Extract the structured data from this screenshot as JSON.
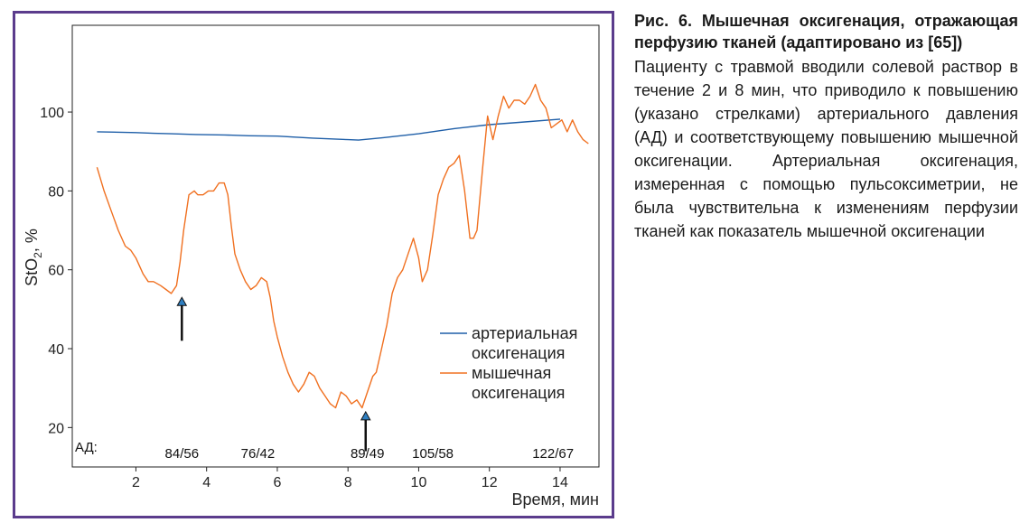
{
  "caption": {
    "title": "Рис. 6. Мышечная оксигенация, отражающая перфузию тканей (адаптировано из [65])",
    "body": "Пациенту с травмой вводили солевой раствор в течение 2 и 8 мин, что приводило к повышению (указано стрелками) артериального давления (АД) и соответствующему повышению мышечной оксигенации. Артериальная оксигенация, измеренная с помощью пульсоксиметрии, не была чувствительна к изменениям перфузии тканей как показатель мышечной оксигенации"
  },
  "colors": {
    "frame": "#5b3c8c",
    "arterial": "#1f5fa8",
    "muscle": "#f07020",
    "arrow_fill": "#2f7fc1"
  },
  "chart_data": {
    "type": "line",
    "xlabel": "Время, мин",
    "ylabel": "StO",
    "ylabel_sub": "2",
    "ylabel_suffix": ", %",
    "xlim": [
      0.2,
      15.1
    ],
    "ylim": [
      10,
      122
    ],
    "xticks": [
      2,
      4,
      6,
      8,
      10,
      12,
      14
    ],
    "yticks": [
      20,
      40,
      60,
      80,
      100
    ],
    "legend_position": "bottom-right",
    "series": [
      {
        "name": "артериальная оксигенация",
        "name_lines": [
          "артериальная",
          "оксигенация"
        ],
        "color": "#1f5fa8",
        "x": [
          0.9,
          2.0,
          2.5,
          3.0,
          3.7,
          4.5,
          5.2,
          6.0,
          7.0,
          8.0,
          8.3,
          9.0,
          10.0,
          11.0,
          12.0,
          13.0,
          14.0
        ],
        "y": [
          95.0,
          94.8,
          94.6,
          94.5,
          94.3,
          94.2,
          94.0,
          93.9,
          93.4,
          93.0,
          92.9,
          93.5,
          94.5,
          95.8,
          96.8,
          97.5,
          98.2
        ]
      },
      {
        "name": "мышечная оксигенация",
        "name_lines": [
          "мышечная",
          "оксигенация"
        ],
        "color": "#f07020",
        "x": [
          0.9,
          1.1,
          1.3,
          1.5,
          1.7,
          1.85,
          2.0,
          2.2,
          2.35,
          2.5,
          2.7,
          2.85,
          3.0,
          3.15,
          3.25,
          3.35,
          3.5,
          3.65,
          3.75,
          3.9,
          4.05,
          4.2,
          4.35,
          4.5,
          4.6,
          4.7,
          4.8,
          4.95,
          5.1,
          5.25,
          5.4,
          5.55,
          5.7,
          5.8,
          5.9,
          6.0,
          6.15,
          6.3,
          6.45,
          6.6,
          6.75,
          6.9,
          7.05,
          7.2,
          7.35,
          7.5,
          7.65,
          7.8,
          7.95,
          8.1,
          8.25,
          8.4,
          8.55,
          8.7,
          8.8,
          8.95,
          9.1,
          9.25,
          9.4,
          9.55,
          9.7,
          9.85,
          10.0,
          10.1,
          10.25,
          10.4,
          10.55,
          10.7,
          10.85,
          11.0,
          11.15,
          11.3,
          11.45,
          11.55,
          11.65,
          11.8,
          11.95,
          12.1,
          12.25,
          12.4,
          12.55,
          12.7,
          12.85,
          13.0,
          13.15,
          13.3,
          13.45,
          13.6,
          13.75,
          13.9,
          14.05,
          14.2,
          14.35,
          14.5,
          14.65,
          14.8
        ],
        "y": [
          86,
          80,
          75,
          70,
          66,
          65,
          63,
          59,
          57,
          57,
          56,
          55,
          54,
          56,
          62,
          70,
          79,
          80,
          79,
          79,
          80,
          80,
          82,
          82,
          79,
          71,
          64,
          60,
          57,
          55,
          56,
          58,
          57,
          53,
          47,
          43,
          38,
          34,
          31,
          29,
          31,
          34,
          33,
          30,
          28,
          26,
          25,
          29,
          28,
          26,
          27,
          25,
          29,
          33,
          34,
          40,
          46,
          54,
          58,
          60,
          64,
          68,
          63,
          57,
          60,
          69,
          79,
          83,
          86,
          87,
          89,
          80,
          68,
          68,
          70,
          85,
          99,
          93,
          99,
          104,
          101,
          103,
          103,
          102,
          104,
          107,
          103,
          101,
          96,
          97,
          98,
          95,
          98,
          95,
          93,
          92
        ]
      }
    ],
    "arrows": [
      {
        "x": 3.3,
        "y_from": 42,
        "y_to": 53
      },
      {
        "x": 8.5,
        "y_from": 14,
        "y_to": 24
      }
    ],
    "bp": {
      "label": "АД:",
      "values": [
        {
          "x": 3.3,
          "text": "84/56"
        },
        {
          "x": 5.45,
          "text": "76/42"
        },
        {
          "x": 8.55,
          "text": "89/49"
        },
        {
          "x": 10.4,
          "text": "105/58"
        },
        {
          "x": 13.8,
          "text": "122/67"
        }
      ]
    }
  }
}
